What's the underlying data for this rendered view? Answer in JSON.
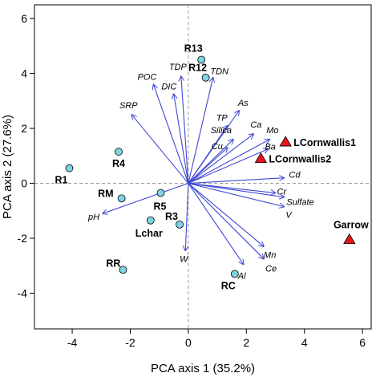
{
  "chart_data": {
    "type": "scatter",
    "title": "",
    "xlabel": "PCA axis 1 (35.2%)",
    "ylabel": "PCA axis 2 (27.6%)",
    "xlim": [
      -5.3,
      6.3
    ],
    "ylim": [
      -5.3,
      6.5
    ],
    "xticks": [
      -4,
      -2,
      0,
      2,
      4,
      6
    ],
    "yticks": [
      -4,
      -2,
      0,
      2,
      4,
      6
    ],
    "grid": false,
    "reference_lines": {
      "x": 0,
      "y": 0,
      "style": "dashed"
    },
    "sites": [
      {
        "label": "R13",
        "x": 0.45,
        "y": 4.5,
        "marker": "circle"
      },
      {
        "label": "R12",
        "x": 0.6,
        "y": 3.85,
        "marker": "circle"
      },
      {
        "label": "R4",
        "x": -2.4,
        "y": 1.15,
        "marker": "circle"
      },
      {
        "label": "R1",
        "x": -4.1,
        "y": 0.55,
        "marker": "circle"
      },
      {
        "label": "RM",
        "x": -2.3,
        "y": -0.55,
        "marker": "circle"
      },
      {
        "label": "R5",
        "x": -0.95,
        "y": -0.35,
        "marker": "circle"
      },
      {
        "label": "R3",
        "x": -0.3,
        "y": -1.5,
        "marker": "circle"
      },
      {
        "label": "Lchar",
        "x": -1.3,
        "y": -1.35,
        "marker": "circle"
      },
      {
        "label": "RR",
        "x": -2.25,
        "y": -3.15,
        "marker": "circle"
      },
      {
        "label": "RC",
        "x": 1.6,
        "y": -3.3,
        "marker": "circle"
      },
      {
        "label": "LCornwallis1",
        "x": 3.35,
        "y": 1.5,
        "marker": "triangle"
      },
      {
        "label": "LCornwallis2",
        "x": 2.5,
        "y": 0.9,
        "marker": "triangle"
      },
      {
        "label": "Garrow",
        "x": 5.55,
        "y": -2.05,
        "marker": "triangle"
      }
    ],
    "loadings": [
      {
        "name": "TDP",
        "x": -0.25,
        "y": 3.9
      },
      {
        "name": "POC",
        "x": -1.2,
        "y": 3.6
      },
      {
        "name": "DIC",
        "x": -0.5,
        "y": 3.25
      },
      {
        "name": "TDN",
        "x": 0.85,
        "y": 3.85
      },
      {
        "name": "SRP",
        "x": -1.95,
        "y": 2.5
      },
      {
        "name": "As",
        "x": 1.75,
        "y": 2.65
      },
      {
        "name": "TP",
        "x": 1.35,
        "y": 2.1
      },
      {
        "name": "Ca",
        "x": 2.25,
        "y": 1.8
      },
      {
        "name": "Silica",
        "x": 1.55,
        "y": 1.6
      },
      {
        "name": "Mo",
        "x": 2.8,
        "y": 1.6
      },
      {
        "name": "Cu",
        "x": 1.35,
        "y": 1.3
      },
      {
        "name": "Ba",
        "x": 2.75,
        "y": 1.25
      },
      {
        "name": "Cd",
        "x": 3.3,
        "y": 0.2
      },
      {
        "name": "Cr",
        "x": 3.0,
        "y": -0.35
      },
      {
        "name": "Sulfate",
        "x": 3.3,
        "y": -0.5
      },
      {
        "name": "V",
        "x": 3.3,
        "y": -0.85
      },
      {
        "name": "pH",
        "x": -2.95,
        "y": -1.1
      },
      {
        "name": "W",
        "x": -0.1,
        "y": -2.45
      },
      {
        "name": "Mn",
        "x": 2.6,
        "y": -2.3
      },
      {
        "name": "Ce",
        "x": 2.6,
        "y": -2.75
      },
      {
        "name": "Al",
        "x": 1.9,
        "y": -2.95
      }
    ]
  },
  "colors": {
    "arrow": "#3f48d4",
    "circle_fill": "#7fd3e3",
    "triangle_fill": "#e8141c",
    "marker_stroke": "#000000",
    "axis": "#000000",
    "zero_line": "#9a9a9a"
  }
}
